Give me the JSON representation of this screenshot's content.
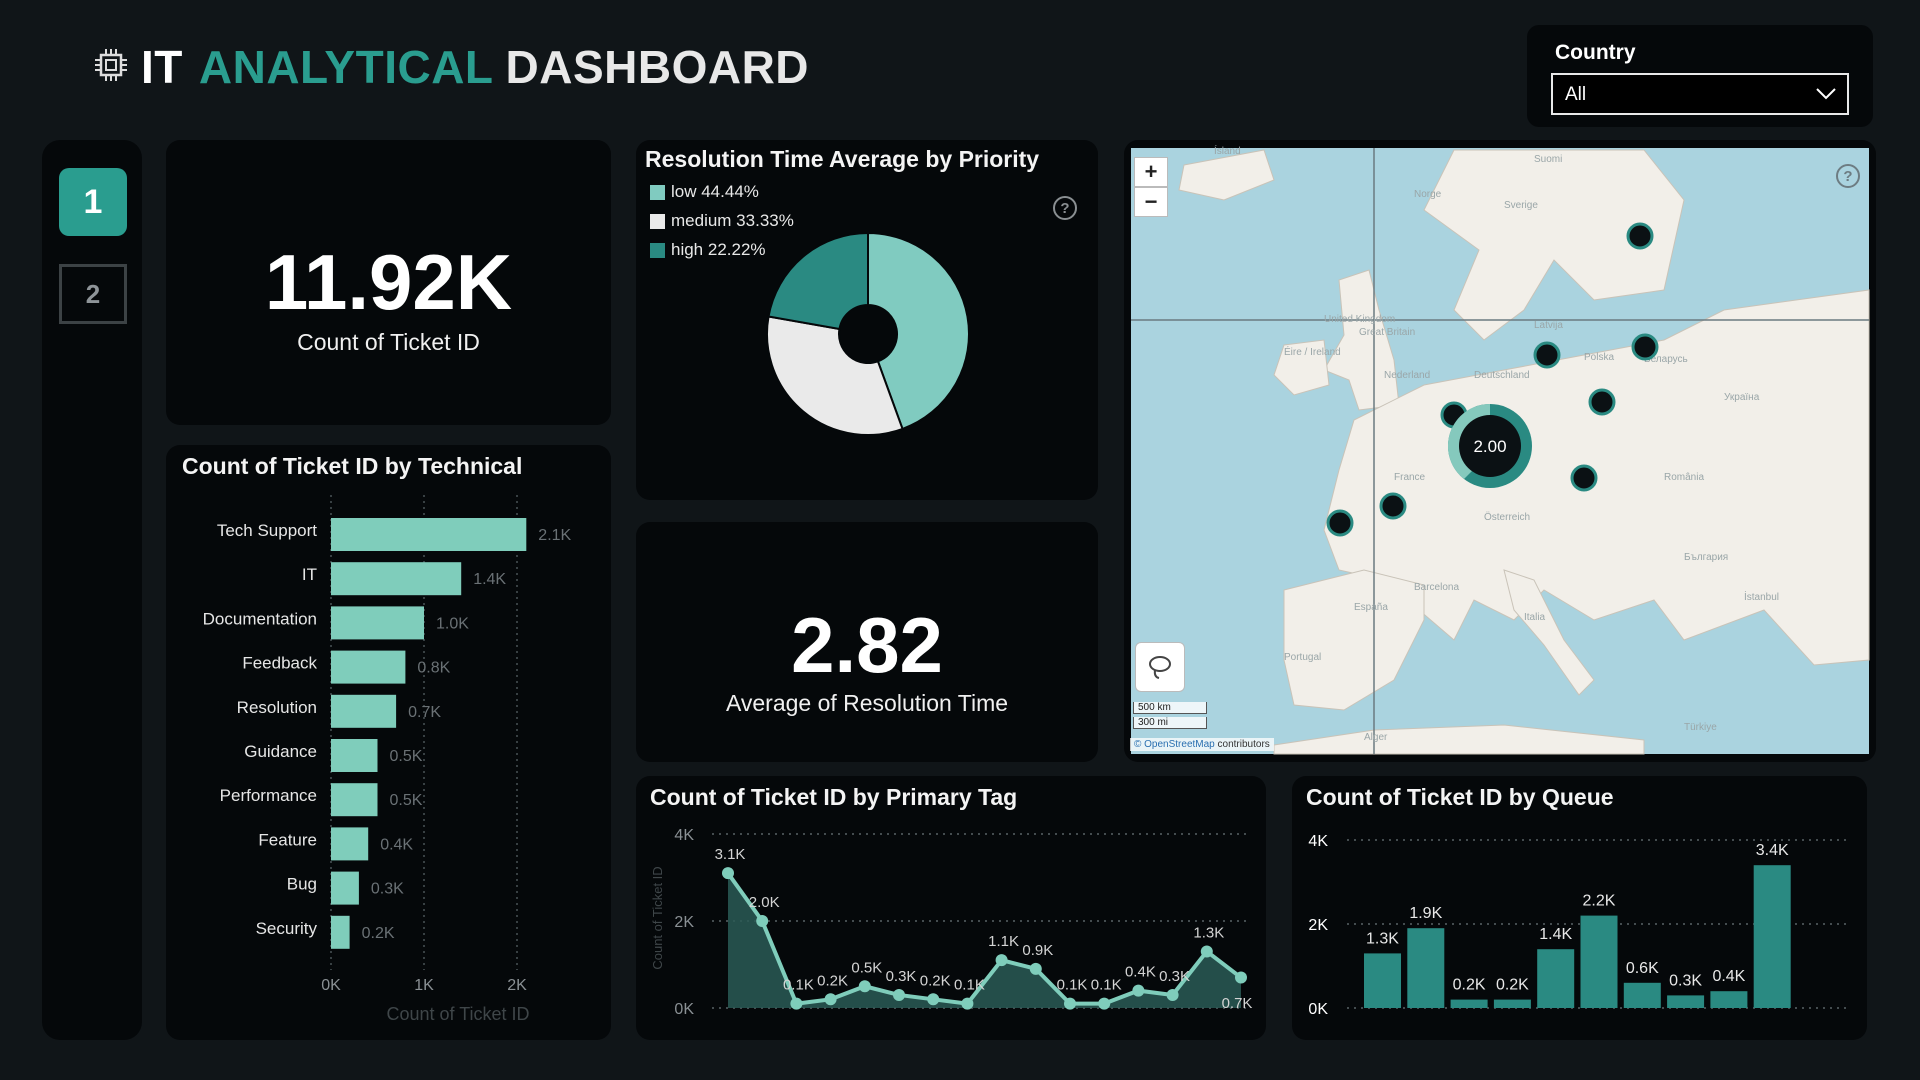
{
  "header": {
    "prefix": "IT",
    "word1": "ANALYTICAL",
    "word2": "DASHBOARD",
    "icon": "chip-icon"
  },
  "filter": {
    "label": "Country",
    "value": "All"
  },
  "nav": {
    "page1": "1",
    "page2": "2"
  },
  "kpi_tickets": {
    "value": "11.92K",
    "label": "Count of Ticket ID"
  },
  "kpi_resolution": {
    "value": "2.82",
    "label": "Average of Resolution Time"
  },
  "colors": {
    "accent": "#2a9d8f",
    "bar": "#7fcdbb",
    "light_teal": "#80cbc0",
    "card_bg": "#05080a",
    "page_bg": "#101518",
    "map_sea": "#aad3df",
    "map_land": "#f2efe9"
  },
  "map": {
    "zoom_in": "+",
    "zoom_out": "−",
    "scale_km": "500 km",
    "scale_mi": "300 mi",
    "attribution_link": "© OpenStreetMap",
    "attribution_text": " contributors",
    "cluster_label": "2.00",
    "labels": [
      "Ísland",
      "Suomi",
      "Norge",
      "Sverige",
      "United Kingdom",
      "Great Britain",
      "Éire / Ireland",
      "Nederland",
      "Polska",
      "Deutschland",
      "Latvija",
      "Беларусь",
      "Україна",
      "France",
      "Österreich",
      "România",
      "Barcelona",
      "España",
      "Portugal",
      "Italia",
      "България",
      "İstanbul",
      "Alger",
      "Türkiye"
    ]
  },
  "chart_data": [
    {
      "id": "resolution_by_priority",
      "type": "pie",
      "title": "Resolution Time Average by Priority",
      "labels": [
        "low",
        "medium",
        "high"
      ],
      "legend": [
        "low 44.44%",
        "medium 33.33%",
        "high 22.22%"
      ],
      "values": [
        44.44,
        33.33,
        22.22
      ],
      "colors": [
        "#80cbc0",
        "#eaeaea",
        "#2a8a82"
      ],
      "help": "?"
    },
    {
      "id": "tickets_by_technical",
      "type": "bar",
      "orientation": "horizontal",
      "title": "Count of Ticket ID by Technical",
      "categories": [
        "Tech Support",
        "IT",
        "Documentation",
        "Feedback",
        "Resolution",
        "Guidance",
        "Performance",
        "Feature",
        "Bug",
        "Security"
      ],
      "values": [
        2.1,
        1.4,
        1.0,
        0.8,
        0.7,
        0.5,
        0.5,
        0.4,
        0.3,
        0.2
      ],
      "value_labels": [
        "2.1K",
        "1.4K",
        "1.0K",
        "0.8K",
        "0.7K",
        "0.5K",
        "0.5K",
        "0.4K",
        "0.3K",
        "0.2K"
      ],
      "xticks": [
        "0K",
        "1K",
        "2K"
      ],
      "xlim": [
        0,
        2.2
      ],
      "xlabel": "Count of Ticket ID"
    },
    {
      "id": "tickets_by_primary_tag",
      "type": "area",
      "title": "Count of Ticket ID by Primary Tag",
      "values": [
        3.1,
        2.0,
        0.1,
        0.2,
        0.5,
        0.3,
        0.2,
        0.1,
        1.1,
        0.9,
        0.1,
        0.1,
        0.4,
        0.3,
        1.3,
        0.7
      ],
      "value_labels": [
        "3.1K",
        "2.0K",
        "0.1K",
        "0.2K",
        "0.5K",
        "0.3K",
        "0.2K",
        "0.1K",
        "1.1K",
        "0.9K",
        "0.1K",
        "0.1K",
        "0.4K",
        "0.3K",
        "1.3K",
        "0.7K"
      ],
      "yticks": [
        "0K",
        "2K",
        "4K"
      ],
      "ylim": [
        0,
        4
      ],
      "ylabel": "Count of Ticket ID"
    },
    {
      "id": "tickets_by_queue",
      "type": "bar",
      "title": "Count of Ticket ID by Queue",
      "values": [
        1.3,
        1.9,
        0.2,
        0.2,
        1.4,
        2.2,
        0.6,
        0.3,
        0.4,
        3.4
      ],
      "value_labels": [
        "1.3K",
        "1.9K",
        "0.2K",
        "0.2K",
        "1.4K",
        "2.2K",
        "0.6K",
        "0.3K",
        "0.4K",
        "3.4K"
      ],
      "yticks": [
        "0K",
        "2K",
        "4K"
      ],
      "ylim": [
        0,
        4
      ]
    }
  ]
}
